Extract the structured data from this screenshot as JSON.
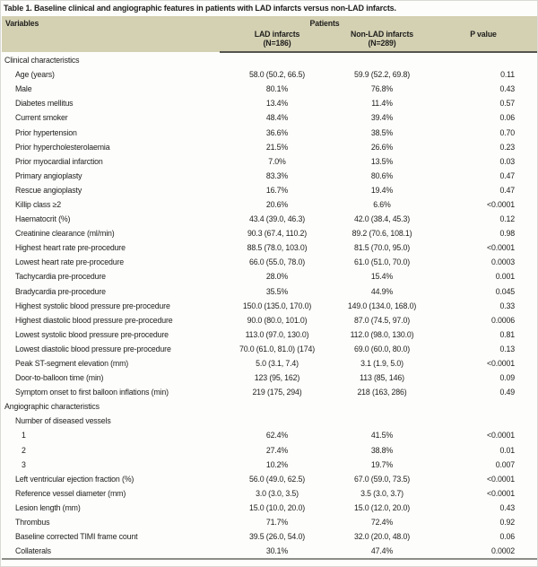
{
  "caption": "Table 1. Baseline clinical and angiographic features in patients with LAD infarcts versus non-LAD infarcts.",
  "header": {
    "variables": "Variables",
    "patients": "Patients",
    "col_lad": {
      "label": "LAD infarcts",
      "n": "(N=186)"
    },
    "col_nonlad": {
      "label": "Non-LAD infarcts",
      "n": "(N=289)"
    },
    "p_value": "P value"
  },
  "colors": {
    "header_bg": "#d4d1b3",
    "header_rule": "#55554e",
    "bottom_rule": "#8d8d88",
    "text": "#1e1e1c"
  },
  "table": {
    "rows": [
      {
        "label": "Clinical characteristics",
        "indent": 0,
        "section": true,
        "lad": "",
        "nonlad": "",
        "p": ""
      },
      {
        "label": "Age (years)",
        "indent": 1,
        "lad": "58.0 (50.2, 66.5)",
        "nonlad": "59.9 (52.2, 69.8)",
        "p": "0.11"
      },
      {
        "label": "Male",
        "indent": 1,
        "lad": "80.1%",
        "nonlad": "76.8%",
        "p": "0.43"
      },
      {
        "label": "Diabetes mellitus",
        "indent": 1,
        "lad": "13.4%",
        "nonlad": "11.4%",
        "p": "0.57"
      },
      {
        "label": "Current smoker",
        "indent": 1,
        "lad": "48.4%",
        "nonlad": "39.4%",
        "p": "0.06"
      },
      {
        "label": "Prior hypertension",
        "indent": 1,
        "lad": "36.6%",
        "nonlad": "38.5%",
        "p": "0.70"
      },
      {
        "label": "Prior hypercholesterolaemia",
        "indent": 1,
        "lad": "21.5%",
        "nonlad": "26.6%",
        "p": "0.23"
      },
      {
        "label": "Prior myocardial infarction",
        "indent": 1,
        "lad": "7.0%",
        "nonlad": "13.5%",
        "p": "0.03"
      },
      {
        "label": "Primary angioplasty",
        "indent": 1,
        "lad": "83.3%",
        "nonlad": "80.6%",
        "p": "0.47"
      },
      {
        "label": "Rescue angioplasty",
        "indent": 1,
        "lad": "16.7%",
        "nonlad": "19.4%",
        "p": "0.47"
      },
      {
        "label": "Killip class ≥2",
        "indent": 1,
        "lad": "20.6%",
        "nonlad": "6.6%",
        "p": "<0.0001"
      },
      {
        "label": "Haematocrit (%)",
        "indent": 1,
        "lad": "43.4 (39.0, 46.3)",
        "nonlad": "42.0 (38.4, 45.3)",
        "p": "0.12"
      },
      {
        "label": "Creatinine clearance (ml/min)",
        "indent": 1,
        "lad": "90.3 (67.4, 110.2)",
        "nonlad": "89.2 (70.6, 108.1)",
        "p": "0.98"
      },
      {
        "label": "Highest heart rate pre-procedure",
        "indent": 1,
        "lad": "88.5 (78.0, 103.0)",
        "nonlad": "81.5 (70.0, 95.0)",
        "p": "<0.0001"
      },
      {
        "label": "Lowest heart rate pre-procedure",
        "indent": 1,
        "lad": "66.0 (55.0, 78.0)",
        "nonlad": "61.0 (51.0, 70.0)",
        "p": "0.0003"
      },
      {
        "label": "Tachycardia pre-procedure",
        "indent": 1,
        "lad": "28.0%",
        "nonlad": "15.4%",
        "p": "0.001"
      },
      {
        "label": "Bradycardia pre-procedure",
        "indent": 1,
        "lad": "35.5%",
        "nonlad": "44.9%",
        "p": "0.045"
      },
      {
        "label": "Highest systolic blood pressure pre-procedure",
        "indent": 1,
        "lad": "150.0 (135.0, 170.0)",
        "nonlad": "149.0 (134.0, 168.0)",
        "p": "0.33"
      },
      {
        "label": "Highest diastolic blood pressure pre-procedure",
        "indent": 1,
        "lad": "90.0 (80.0, 101.0)",
        "nonlad": "87.0 (74.5, 97.0)",
        "p": "0.0006"
      },
      {
        "label": "Lowest systolic blood pressure pre-procedure",
        "indent": 1,
        "lad": "113.0 (97.0, 130.0)",
        "nonlad": "112.0 (98.0, 130.0)",
        "p": "0.81"
      },
      {
        "label": "Lowest diastolic blood pressure pre-procedure",
        "indent": 1,
        "lad": "70.0 (61.0, 81.0) (174)",
        "nonlad": "69.0 (60.0, 80.0)",
        "p": "0.13"
      },
      {
        "label": "Peak ST-segment elevation (mm)",
        "indent": 1,
        "lad": "5.0 (3.1, 7.4)",
        "nonlad": "3.1 (1.9, 5.0)",
        "p": "<0.0001"
      },
      {
        "label": "Door-to-balloon time (min)",
        "indent": 1,
        "lad": "123 (95, 162)",
        "nonlad": "113 (85, 146)",
        "p": "0.09"
      },
      {
        "label": "Symptom onset to first balloon inflations (min)",
        "indent": 1,
        "lad": "219 (175, 294)",
        "nonlad": "218 (163, 286)",
        "p": "0.49"
      },
      {
        "label": "Angiographic characteristics",
        "indent": 0,
        "section": true,
        "lad": "",
        "nonlad": "",
        "p": ""
      },
      {
        "label": "Number of diseased vessels",
        "indent": 1,
        "section": true,
        "lad": "",
        "nonlad": "",
        "p": ""
      },
      {
        "label": "1",
        "indent": 2,
        "lad": "62.4%",
        "nonlad": "41.5%",
        "p": "<0.0001"
      },
      {
        "label": "2",
        "indent": 2,
        "lad": "27.4%",
        "nonlad": "38.8%",
        "p": "0.01"
      },
      {
        "label": "3",
        "indent": 2,
        "lad": "10.2%",
        "nonlad": "19.7%",
        "p": "0.007"
      },
      {
        "label": "Left ventricular ejection fraction (%)",
        "indent": 1,
        "lad": "56.0 (49.0, 62.5)",
        "nonlad": "67.0 (59.0, 73.5)",
        "p": "<0.0001"
      },
      {
        "label": "Reference vessel diameter (mm)",
        "indent": 1,
        "lad": "3.0 (3.0, 3.5)",
        "nonlad": "3.5 (3.0, 3.7)",
        "p": "<0.0001"
      },
      {
        "label": "Lesion length (mm)",
        "indent": 1,
        "lad": "15.0 (10.0, 20.0)",
        "nonlad": "15.0 (12.0, 20.0)",
        "p": "0.43"
      },
      {
        "label": "Thrombus",
        "indent": 1,
        "lad": "71.7%",
        "nonlad": "72.4%",
        "p": "0.92"
      },
      {
        "label": "Baseline corrected TIMI frame count",
        "indent": 1,
        "lad": "39.5 (26.0, 54.0)",
        "nonlad": "32.0 (20.0, 48.0)",
        "p": "0.06"
      },
      {
        "label": "Collaterals",
        "indent": 1,
        "lad": "30.1%",
        "nonlad": "47.4%",
        "p": "0.0002"
      }
    ]
  }
}
